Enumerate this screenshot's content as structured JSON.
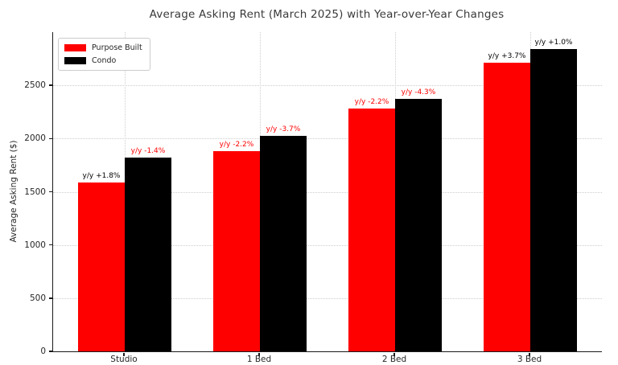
{
  "chart_data": {
    "type": "bar",
    "title": "Average Asking Rent (March 2025) with Year-over-Year Changes",
    "ylabel": "Average Asking Rent ($)",
    "xlabel": "",
    "categories": [
      "Studio",
      "1 Bed",
      "2 Bed",
      "3 Bed"
    ],
    "series": [
      {
        "name": "Purpose Built",
        "color": "#ff0000",
        "values": [
          1590,
          1885,
          2280,
          2710
        ],
        "yoy_labels": [
          "y/y +1.8%",
          "y/y -2.2%",
          "y/y -2.2%",
          "y/y +3.7%"
        ]
      },
      {
        "name": "Condo",
        "color": "#000000",
        "values": [
          1820,
          2025,
          2375,
          2840
        ],
        "yoy_labels": [
          "y/y -1.4%",
          "y/y -3.7%",
          "y/y -4.3%",
          "y/y +1.0%"
        ]
      }
    ],
    "yticks": [
      0,
      500,
      1000,
      1500,
      2000,
      2500
    ],
    "ylim": [
      0,
      3000
    ],
    "grid": "dotted both axes",
    "legend_position": "upper left",
    "annotation_positive_color": "#000000",
    "annotation_negative_color": "#ff0000"
  }
}
